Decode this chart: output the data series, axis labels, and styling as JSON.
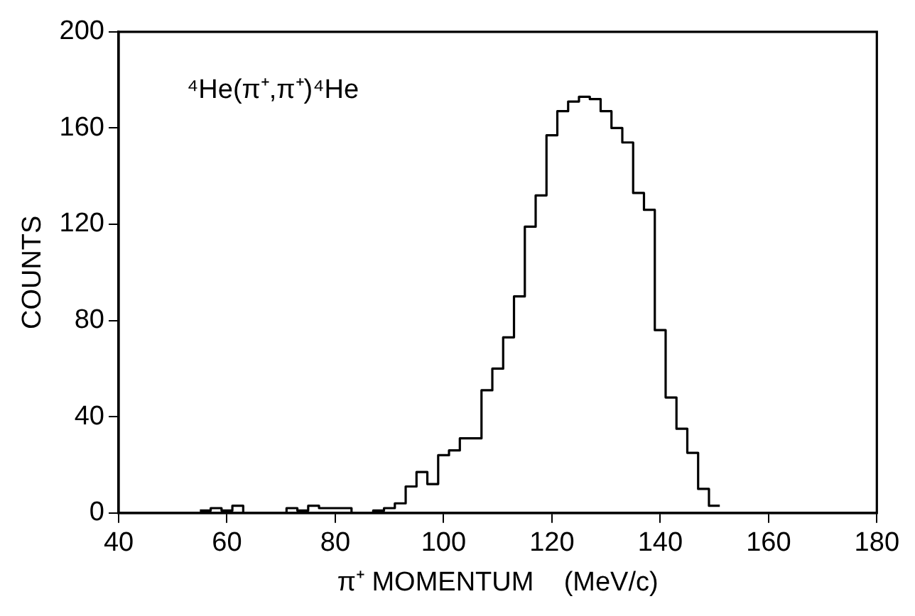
{
  "chart_data": {
    "type": "histogram",
    "xlabel": "π⁺ MOMENTUM    (MeV/c)",
    "ylabel": "COUNTS",
    "annotations": [
      "⁴He(π⁺,π⁺)⁴He"
    ],
    "bins": [
      55,
      57,
      59,
      61,
      63,
      65,
      67,
      69,
      71,
      73,
      75,
      77,
      79,
      81,
      83,
      85,
      87,
      89,
      91,
      93,
      95,
      97,
      99,
      101,
      103,
      105,
      107,
      109,
      111,
      113,
      115,
      117,
      119,
      121,
      123,
      125,
      127,
      129,
      131,
      133,
      135,
      137,
      139,
      141,
      143,
      145,
      147,
      149,
      151
    ],
    "values": [
      1,
      2,
      1,
      3,
      0,
      0,
      0,
      0,
      2,
      1,
      3,
      2,
      2,
      2,
      0,
      0,
      1,
      2,
      4,
      11,
      17,
      12,
      24,
      26,
      31,
      31,
      51,
      60,
      73,
      90,
      119,
      132,
      157,
      167,
      171,
      173,
      172,
      167,
      160,
      154,
      133,
      126,
      76,
      48,
      35,
      25,
      10,
      3
    ],
    "color": "#000000",
    "xlim": [
      40,
      180
    ],
    "xticks": [
      40,
      60,
      80,
      100,
      120,
      140,
      160,
      180
    ],
    "ylim": [
      0,
      200
    ],
    "yticks": [
      0,
      40,
      80,
      120,
      160,
      200
    ],
    "grid": false,
    "legend": false
  }
}
